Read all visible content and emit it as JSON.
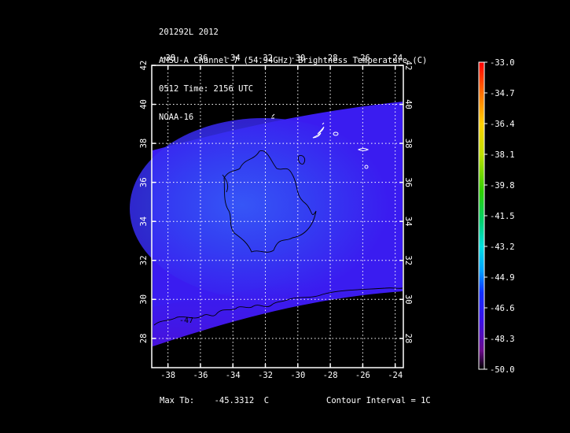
{
  "header": {
    "line1": "201292L 2012",
    "line2": "AMSU-A Channel 7 (54.94GHz) Brightness Temperature (C)",
    "line3": "0512 Time: 2156 UTC",
    "line4": "NOAA-16"
  },
  "map": {
    "lon_labels": [
      "-38",
      "-36",
      "-34",
      "-32",
      "-30",
      "-28",
      "-26",
      "-24"
    ],
    "lat_labels": [
      "28",
      "30",
      "32",
      "34",
      "36",
      "38",
      "40",
      "42"
    ],
    "lon_range": [
      -39,
      -23.5
    ],
    "lat_range": [
      26.5,
      42
    ],
    "contour_label": "-47",
    "colors": {
      "swath_main": "#3a1cf0",
      "swath_center": "#3550f5",
      "swath_edge": "#4a10d8"
    }
  },
  "colorbar": {
    "labels": [
      "-33.0",
      "-34.7",
      "-36.4",
      "-38.1",
      "-39.8",
      "-41.5",
      "-43.2",
      "-44.9",
      "-46.6",
      "-48.3",
      "-50.0"
    ],
    "range": [
      -50.0,
      -33.0
    ]
  },
  "footer": {
    "max_tb_label": "Max Tb:",
    "max_tb_value": "-45.3312",
    "max_tb_unit": "C",
    "contour_interval": "Contour Interval = 1C"
  }
}
